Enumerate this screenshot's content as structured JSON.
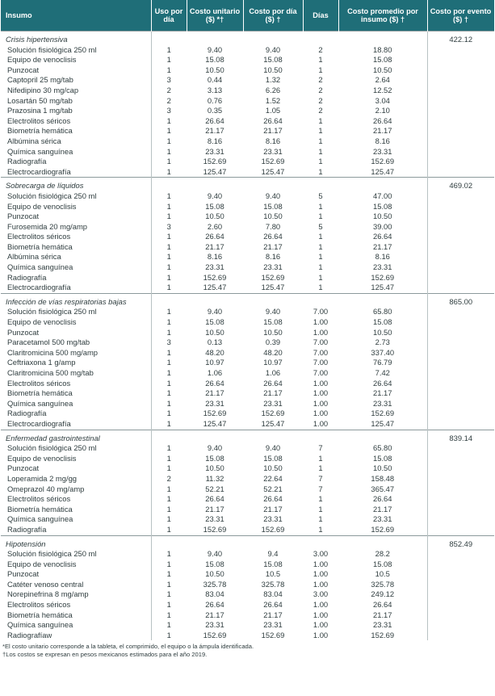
{
  "header": [
    "Insumo",
    "Uso por día",
    "Costo unitario ($) *†",
    "Costo por día ($) †",
    "Días",
    "Costo promedio por insumo ($) †",
    "Costo por evento ($) †"
  ],
  "sections": [
    {
      "title": "Crisis hipertensiva",
      "event_cost": "422.12",
      "rows": [
        [
          "Solución fisiológica 250 ml",
          "1",
          "9.40",
          "9.40",
          "2",
          "18.80"
        ],
        [
          "Equipo de venoclisis",
          "1",
          "15.08",
          "15.08",
          "1",
          "15.08"
        ],
        [
          "Punzocat",
          "1",
          "10.50",
          "10.50",
          "1",
          "10.50"
        ],
        [
          "Captopril 25 mg/tab",
          "3",
          "0.44",
          "1.32",
          "2",
          "2.64"
        ],
        [
          "Nifedipino 30 mg/cap",
          "2",
          "3.13",
          "6.26",
          "2",
          "12.52"
        ],
        [
          "Losartán 50 mg/tab",
          "2",
          "0.76",
          "1.52",
          "2",
          "3.04"
        ],
        [
          "Prazosina 1 mg/tab",
          "3",
          "0.35",
          "1.05",
          "2",
          "2.10"
        ],
        [
          "Electrolitos séricos",
          "1",
          "26.64",
          "26.64",
          "1",
          "26.64"
        ],
        [
          "Biometría hemática",
          "1",
          "21.17",
          "21.17",
          "1",
          "21.17"
        ],
        [
          "Albúmina sérica",
          "1",
          "8.16",
          "8.16",
          "1",
          "8.16"
        ],
        [
          "Química sanguínea",
          "1",
          "23.31",
          "23.31",
          "1",
          "23.31"
        ],
        [
          "Radiografía",
          "1",
          "152.69",
          "152.69",
          "1",
          "152.69"
        ],
        [
          "Electrocardiografía",
          "1",
          "125.47",
          "125.47",
          "1",
          "125.47"
        ]
      ]
    },
    {
      "title": "Sobrecarga de líquidos",
      "event_cost": "469.02",
      "rows": [
        [
          "Solución fisiológica 250 ml",
          "1",
          "9.40",
          "9.40",
          "5",
          "47.00"
        ],
        [
          "Equipo de venoclisis",
          "1",
          "15.08",
          "15.08",
          "1",
          "15.08"
        ],
        [
          "Punzocat",
          "1",
          "10.50",
          "10.50",
          "1",
          "10.50"
        ],
        [
          "Furosemida 20 mg/amp",
          "3",
          "2.60",
          "7.80",
          "5",
          "39.00"
        ],
        [
          "Electrolitos séricos",
          "1",
          "26.64",
          "26.64",
          "1",
          "26.64"
        ],
        [
          "Biometría hemática",
          "1",
          "21.17",
          "21.17",
          "1",
          "21.17"
        ],
        [
          "Albúmina sérica",
          "1",
          "8.16",
          "8.16",
          "1",
          "8.16"
        ],
        [
          "Química sanguínea",
          "1",
          "23.31",
          "23.31",
          "1",
          "23.31"
        ],
        [
          "Radiografía",
          "1",
          "152.69",
          "152.69",
          "1",
          "152.69"
        ],
        [
          "Electrocardiografía",
          "1",
          "125.47",
          "125.47",
          "1",
          "125.47"
        ]
      ]
    },
    {
      "title": "Infección de vías respiratorias bajas",
      "event_cost": "865.00",
      "rows": [
        [
          "Solución fisiológica 250 ml",
          "1",
          "9.40",
          "9.40",
          "7.00",
          "65.80"
        ],
        [
          "Equipo de venoclisis",
          "1",
          "15.08",
          "15.08",
          "1.00",
          "15.08"
        ],
        [
          "Punzocat",
          "1",
          "10.50",
          "10.50",
          "1.00",
          "10.50"
        ],
        [
          "Paracetamol 500 mg/tab",
          "3",
          "0.13",
          "0.39",
          "7.00",
          "2.73"
        ],
        [
          "Claritromicina 500 mg/amp",
          "1",
          "48.20",
          "48.20",
          "7.00",
          "337.40"
        ],
        [
          "Ceftriaxona 1 g/amp",
          "1",
          "10.97",
          "10.97",
          "7.00",
          "76.79"
        ],
        [
          "Claritromicina 500 mg/tab",
          "1",
          "1.06",
          "1.06",
          "7.00",
          "7.42"
        ],
        [
          "Electrolitos séricos",
          "1",
          "26.64",
          "26.64",
          "1.00",
          "26.64"
        ],
        [
          "Biometría hemática",
          "1",
          "21.17",
          "21.17",
          "1.00",
          "21.17"
        ],
        [
          "Química sanguínea",
          "1",
          "23.31",
          "23.31",
          "1.00",
          "23.31"
        ],
        [
          "Radiografía",
          "1",
          "152.69",
          "152.69",
          "1.00",
          "152.69"
        ],
        [
          "Electrocardiografía",
          "1",
          "125.47",
          "125.47",
          "1.00",
          "125.47"
        ]
      ]
    },
    {
      "title": "Enfermedad gastrointestinal",
      "event_cost": "839.14",
      "rows": [
        [
          "Solución fisiológica 250 ml",
          "1",
          "9.40",
          "9.40",
          "7",
          "65.80"
        ],
        [
          "Equipo de venoclisis",
          "1",
          "15.08",
          "15.08",
          "1",
          "15.08"
        ],
        [
          "Punzocat",
          "1",
          "10.50",
          "10.50",
          "1",
          "10.50"
        ],
        [
          "Loperamida 2 mg/gg",
          "2",
          "11.32",
          "22.64",
          "7",
          "158.48"
        ],
        [
          "Omeprazol 40 mg/amp",
          "1",
          "52.21",
          "52.21",
          "7",
          "365.47"
        ],
        [
          "Electrolitos séricos",
          "1",
          "26.64",
          "26.64",
          "1",
          "26.64"
        ],
        [
          "Biometría hemática",
          "1",
          "21.17",
          "21.17",
          "1",
          "21.17"
        ],
        [
          "Química sanguínea",
          "1",
          "23.31",
          "23.31",
          "1",
          "23.31"
        ],
        [
          "Radiografía",
          "1",
          "152.69",
          "152.69",
          "1",
          "152.69"
        ]
      ]
    },
    {
      "title": "Hipotensión",
      "event_cost": "852.49",
      "rows": [
        [
          "Solución fisiológica 250 ml",
          "1",
          "9.40",
          "9.4",
          "3.00",
          "28.2"
        ],
        [
          "Equipo de venoclisis",
          "1",
          "15.08",
          "15.08",
          "1.00",
          "15.08"
        ],
        [
          "Punzocat",
          "1",
          "10.50",
          "10.5",
          "1.00",
          "10.5"
        ],
        [
          "Catéter venoso central",
          "1",
          "325.78",
          "325.78",
          "1.00",
          "325.78"
        ],
        [
          "Norepinefrina 8 mg/amp",
          "1",
          "83.04",
          "83.04",
          "3.00",
          "249.12"
        ],
        [
          "Electrolitos séricos",
          "1",
          "26.64",
          "26.64",
          "1.00",
          "26.64"
        ],
        [
          "Biometría hemática",
          "1",
          "21.17",
          "21.17",
          "1.00",
          "21.17"
        ],
        [
          "Química sanguínea",
          "1",
          "23.31",
          "23.31",
          "1.00",
          "23.31"
        ],
        [
          "Radiografíaw",
          "1",
          "152.69",
          "152.69",
          "1.00",
          "152.69"
        ]
      ]
    }
  ],
  "footnotes": [
    "*El costo unitario corresponde a la tableta, el comprimido, el equipo o la ámpula identificada.",
    "†Los costos se expresan en pesos mexicanos estimados para el año 2019."
  ]
}
